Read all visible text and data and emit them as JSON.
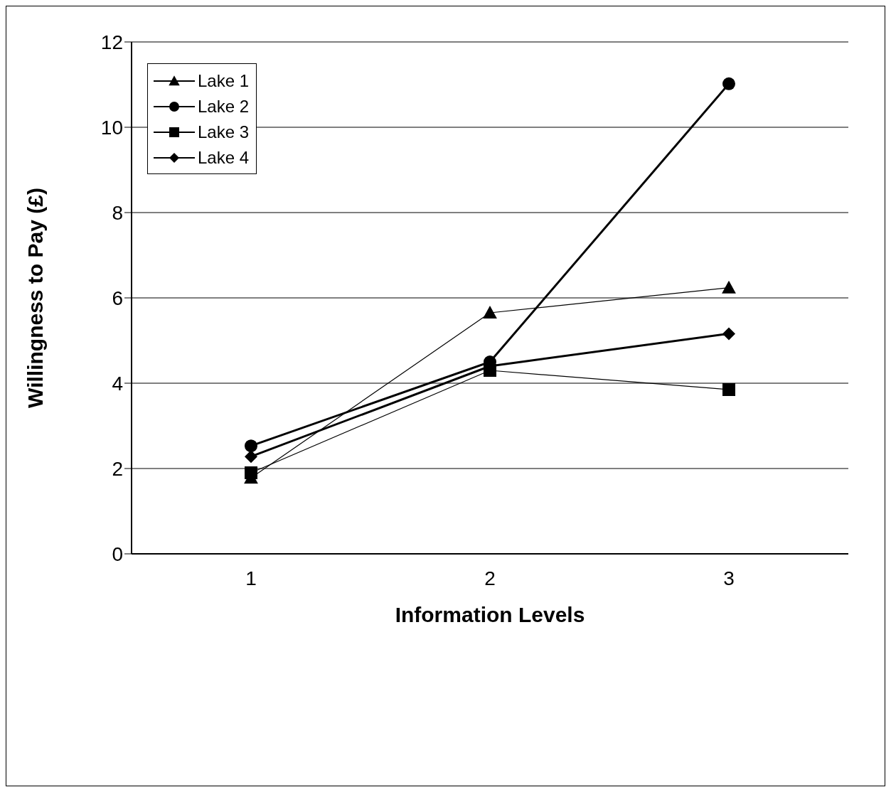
{
  "chart_data": {
    "type": "line",
    "xlabel": "Information Levels",
    "ylabel": "Willingness to Pay (£)",
    "categories": [
      "1",
      "2",
      "3"
    ],
    "ylim": [
      0,
      12
    ],
    "yticks": [
      0,
      2,
      4,
      6,
      8,
      10,
      12
    ],
    "grid": "y",
    "legend": "top left",
    "series": [
      {
        "name": "Lake 1",
        "color": "#000000",
        "marker": "triangle",
        "values": [
          1.78,
          5.65,
          6.24
        ]
      },
      {
        "name": "Lake 2",
        "color": "#000000",
        "marker": "circle",
        "values": [
          2.53,
          4.5,
          11.02
        ]
      },
      {
        "name": "Lake 3",
        "color": "#000000",
        "marker": "square",
        "values": [
          1.9,
          4.3,
          3.85
        ]
      },
      {
        "name": "Lake 4",
        "color": "#000000",
        "marker": "diamond",
        "values": [
          2.28,
          4.4,
          5.16
        ]
      }
    ]
  }
}
